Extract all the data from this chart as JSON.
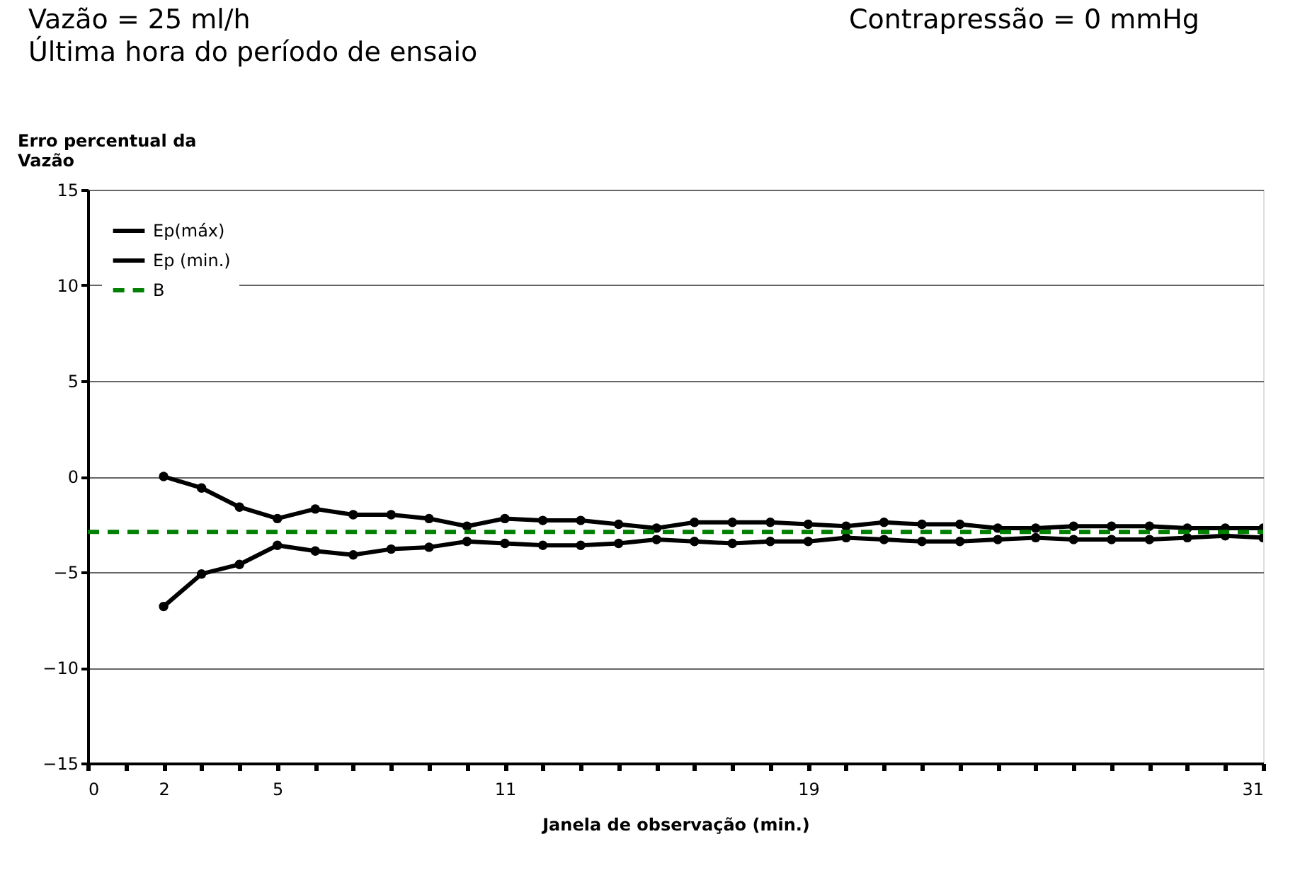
{
  "chart_data": {
    "type": "line",
    "title": "Vazão = 25 ml/h",
    "subtitle": "Última hora do período de ensaio",
    "annotations": [
      "Contrapressão = 0 mmHg"
    ],
    "xlabel": "Janela de observação (min.)",
    "ylabel": "Erro percentual da\nVazão",
    "x": [
      2,
      3,
      4,
      5,
      6,
      7,
      8,
      9,
      10,
      11,
      12,
      13,
      14,
      15,
      16,
      17,
      18,
      19,
      20,
      21,
      22,
      23,
      24,
      25,
      26,
      27,
      28,
      29,
      30,
      31
    ],
    "series": [
      {
        "name": "Ep(máx)",
        "color": "#000000",
        "marker": "circle",
        "line_style": "solid",
        "values": [
          0.0,
          -0.6,
          -1.6,
          -2.2,
          -1.7,
          -2.0,
          -2.0,
          -2.2,
          -2.6,
          -2.2,
          -2.3,
          -2.3,
          -2.5,
          -2.7,
          -2.4,
          -2.4,
          -2.4,
          -2.5,
          -2.6,
          -2.4,
          -2.5,
          -2.5,
          -2.7,
          -2.7,
          -2.6,
          -2.6,
          -2.6,
          -2.7,
          -2.7,
          -2.7
        ]
      },
      {
        "name": "Ep (min.)",
        "color": "#000000",
        "marker": "circle",
        "line_style": "solid",
        "values": [
          -6.8,
          -5.1,
          -4.6,
          -3.6,
          -3.9,
          -4.1,
          -3.8,
          -3.7,
          -3.4,
          -3.5,
          -3.6,
          -3.6,
          -3.5,
          -3.3,
          -3.4,
          -3.5,
          -3.4,
          -3.4,
          -3.2,
          -3.3,
          -3.4,
          -3.4,
          -3.3,
          -3.2,
          -3.3,
          -3.3,
          -3.3,
          -3.2,
          -3.1,
          -3.2
        ]
      },
      {
        "name": "B",
        "color": "#008000",
        "marker": "none",
        "line_style": "dashed",
        "x": [
          0,
          31
        ],
        "values": [
          -2.9,
          -2.9
        ]
      }
    ],
    "xlim": [
      0,
      31
    ],
    "xticks": [
      0,
      {
        "value": 1,
        "label": null
      },
      2,
      {
        "value": 3,
        "label": null
      },
      {
        "value": 4,
        "label": null
      },
      5,
      {
        "value": 6,
        "label": null
      },
      {
        "value": 7,
        "label": null
      },
      {
        "value": 8,
        "label": null
      },
      {
        "value": 9,
        "label": null
      },
      {
        "value": 10,
        "label": null
      },
      11,
      {
        "value": 12,
        "label": null
      },
      {
        "value": 13,
        "label": null
      },
      {
        "value": 14,
        "label": null
      },
      {
        "value": 15,
        "label": null
      },
      {
        "value": 16,
        "label": null
      },
      {
        "value": 17,
        "label": null
      },
      {
        "value": 18,
        "label": null
      },
      19,
      {
        "value": 20,
        "label": null
      },
      {
        "value": 21,
        "label": null
      },
      {
        "value": 22,
        "label": null
      },
      {
        "value": 23,
        "label": null
      },
      {
        "value": 24,
        "label": null
      },
      {
        "value": 25,
        "label": null
      },
      {
        "value": 26,
        "label": null
      },
      {
        "value": 27,
        "label": null
      },
      {
        "value": 28,
        "label": null
      },
      {
        "value": 29,
        "label": null
      },
      {
        "value": 30,
        "label": null
      },
      31
    ],
    "ylim": [
      -15,
      15
    ],
    "yticks": [
      -15,
      -10,
      -5,
      0,
      5,
      10,
      15
    ],
    "grid": "y",
    "legend": "top left"
  }
}
